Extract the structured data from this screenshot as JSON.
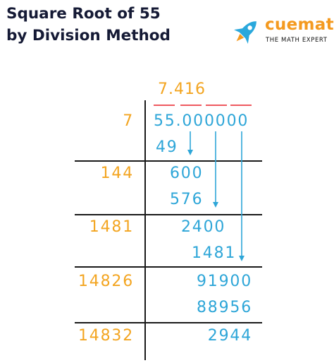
{
  "title": {
    "line1": "Square Root of 55",
    "line2": "by Division Method"
  },
  "brand": {
    "name": "cuemath",
    "tagline": "THE MATH EXPERT",
    "logo_icon": "rocket-icon",
    "colors": {
      "rocket": "#2aa8dc",
      "text": "#f49a20"
    }
  },
  "division": {
    "quotient": "7.416",
    "dividend": "55.000000",
    "rows": [
      {
        "divisor": "7",
        "value": "49"
      },
      {
        "divisor": "144",
        "value": "600"
      },
      {
        "value": "576"
      },
      {
        "divisor": "1481",
        "value": "2400"
      },
      {
        "value": "1481"
      },
      {
        "divisor": "14826",
        "value": "91900"
      },
      {
        "value": "88956"
      },
      {
        "divisor": "14832",
        "value": "2944"
      }
    ]
  },
  "colors": {
    "divisor": "#f3a521",
    "working": "#2ea6d8",
    "pair_bars": "#ef5a60",
    "lines": "#1a1a1a",
    "title": "#151a35"
  }
}
